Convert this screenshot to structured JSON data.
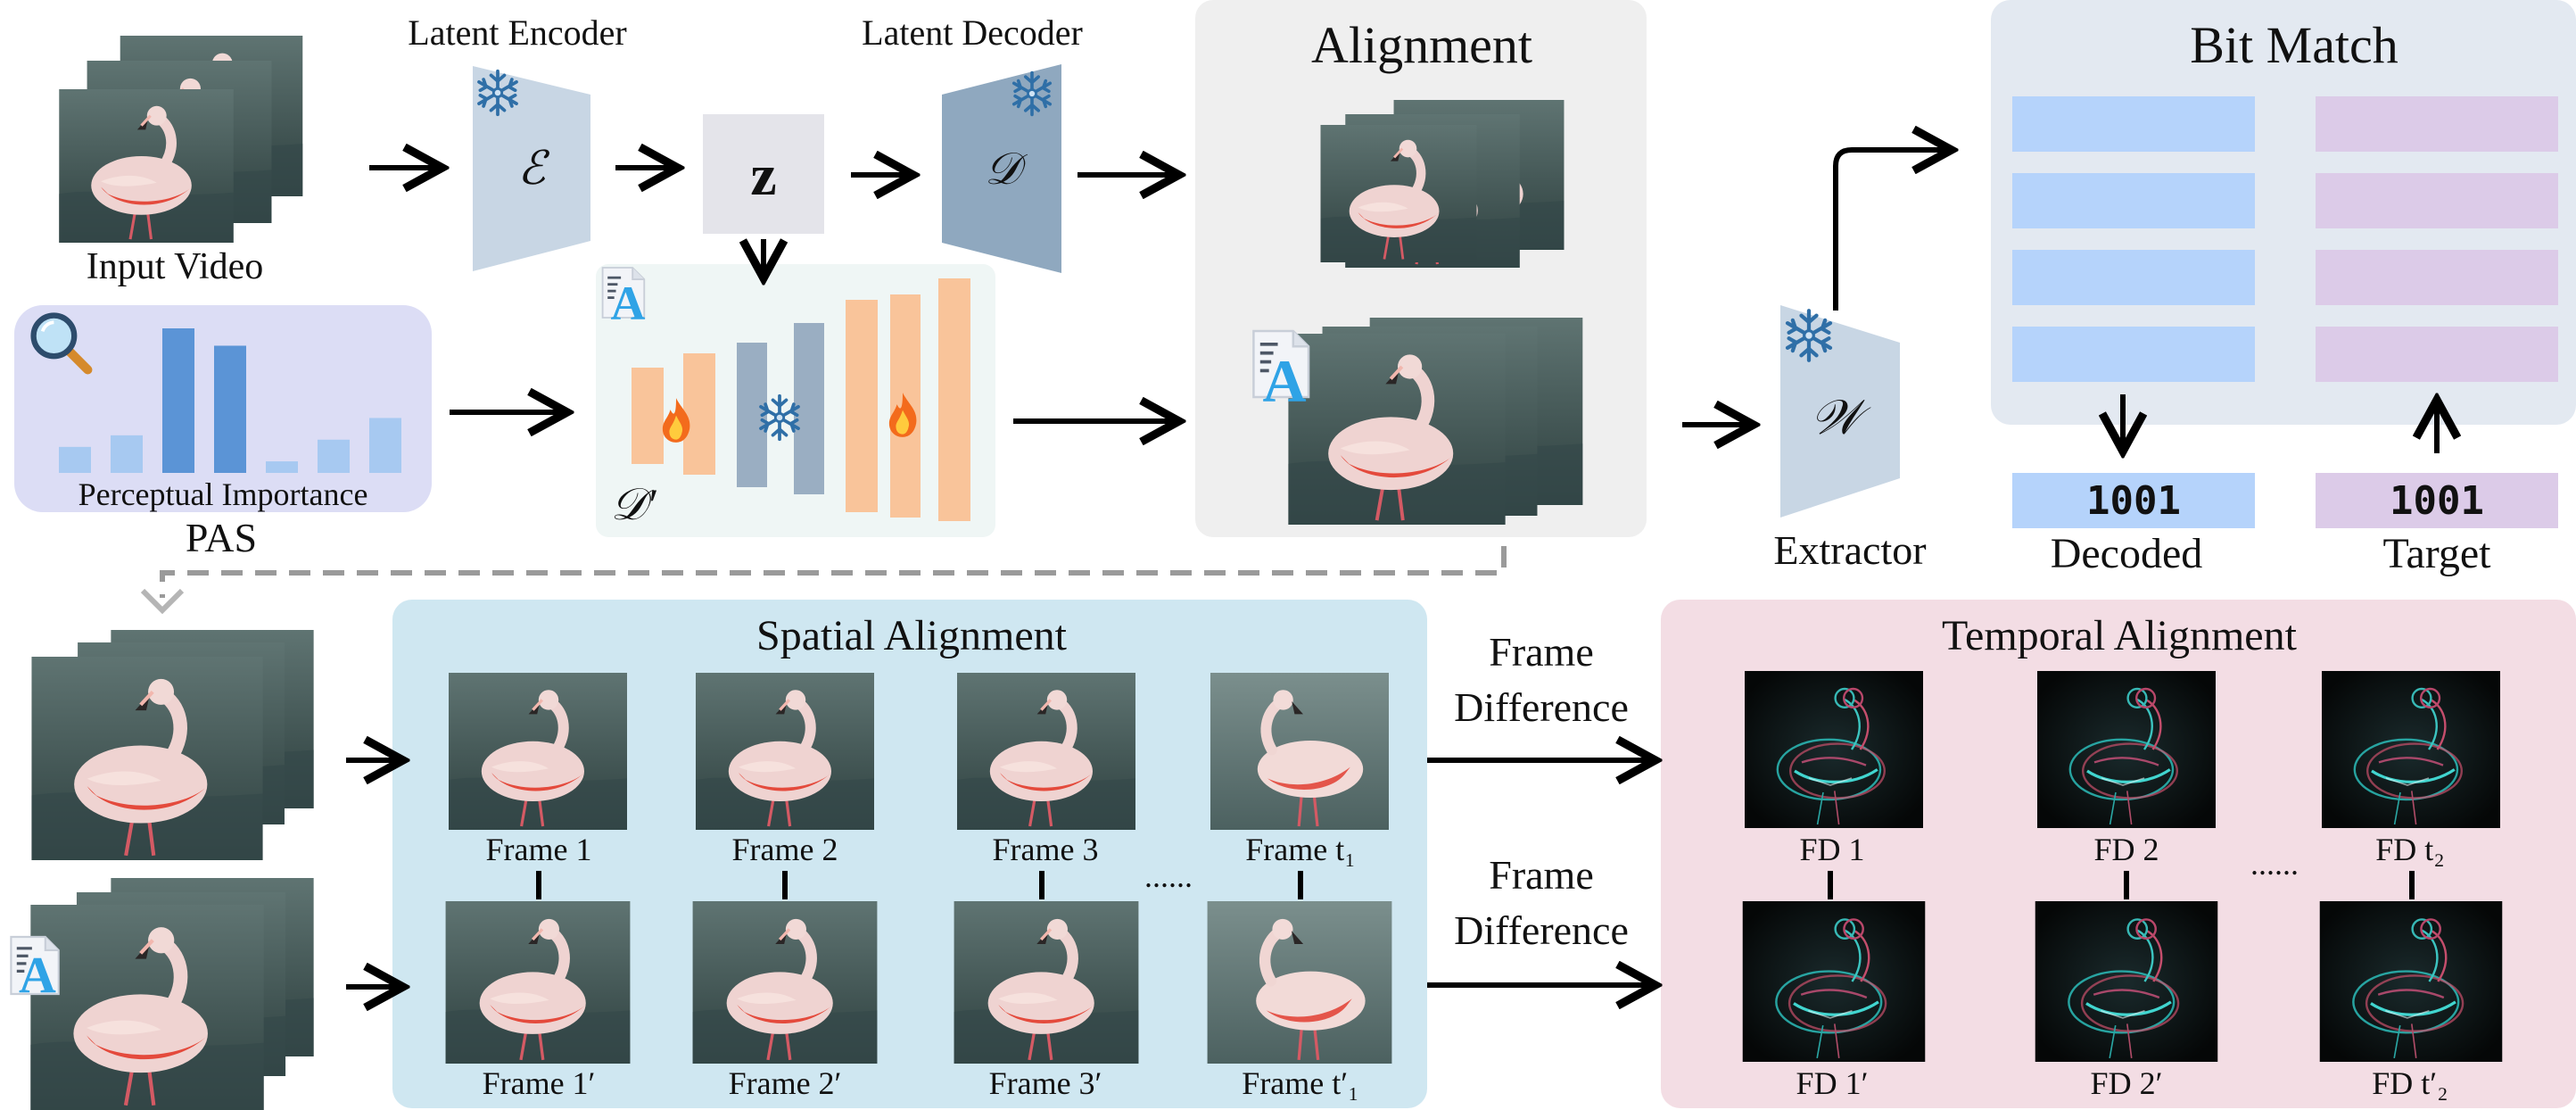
{
  "top": {
    "input_video_label": "Input Video",
    "latent_encoder_label": "Latent Encoder",
    "latent_decoder_label": "Latent Decoder",
    "encoder_symbol": "ℰ",
    "decoder_symbol": "𝒟",
    "latent_symbol": "z",
    "finetuned_decoder_symbol": "𝒟′",
    "perceptual_importance_label": "Perceptual Importance",
    "pas_label": "PAS",
    "alignment_title": "Alignment",
    "extractor_symbol": "𝒲",
    "extractor_label": "Extractor",
    "bit_match_title": "Bit Match",
    "decoded_bits": "1001",
    "target_bits": "1001",
    "decoded_label": "Decoded",
    "target_label": "Target",
    "watermark_letter": "A",
    "perceptual_bars": [
      0.18,
      0.26,
      1.0,
      0.88,
      0.08,
      0.23,
      0.38
    ]
  },
  "bottom": {
    "spatial_title": "Spatial Alignment",
    "temporal_title": "Temporal Alignment",
    "frame_difference_1": [
      "Frame",
      "Difference"
    ],
    "frame_difference_2": [
      "Frame",
      "Difference"
    ],
    "frames_top": [
      "Frame 1",
      "Frame 2",
      "Frame 3",
      "Frame t₁"
    ],
    "frames_bottom": [
      "Frame 1′",
      "Frame 2′",
      "Frame 3′",
      "Frame t′₁"
    ],
    "fd_top": [
      "FD 1",
      "FD 2",
      "FD t₂"
    ],
    "fd_bottom": [
      "FD 1′",
      "FD 2′",
      "FD t′₂"
    ],
    "ellipsis": "......"
  },
  "colors": {
    "frozen_block": "#c8d6e4",
    "decoder_block": "#8fa8bf",
    "latent_box": "#e4e4ea",
    "finetune_block": "#f9c49a",
    "frozen_inner": "#9aaec2",
    "bar": "#5b94d6",
    "bar_light": "#a7c9f1",
    "pas_panel": "#dcddf5",
    "alignment_panel": "#efefef",
    "bitmatch_panel": "#e3e9f1",
    "decoded_bits_bg": "#b5d3fb",
    "target_bits_bg": "#dccbe8",
    "spatial_panel": "#cfe7f1",
    "temporal_panel": "#f3dde4"
  }
}
